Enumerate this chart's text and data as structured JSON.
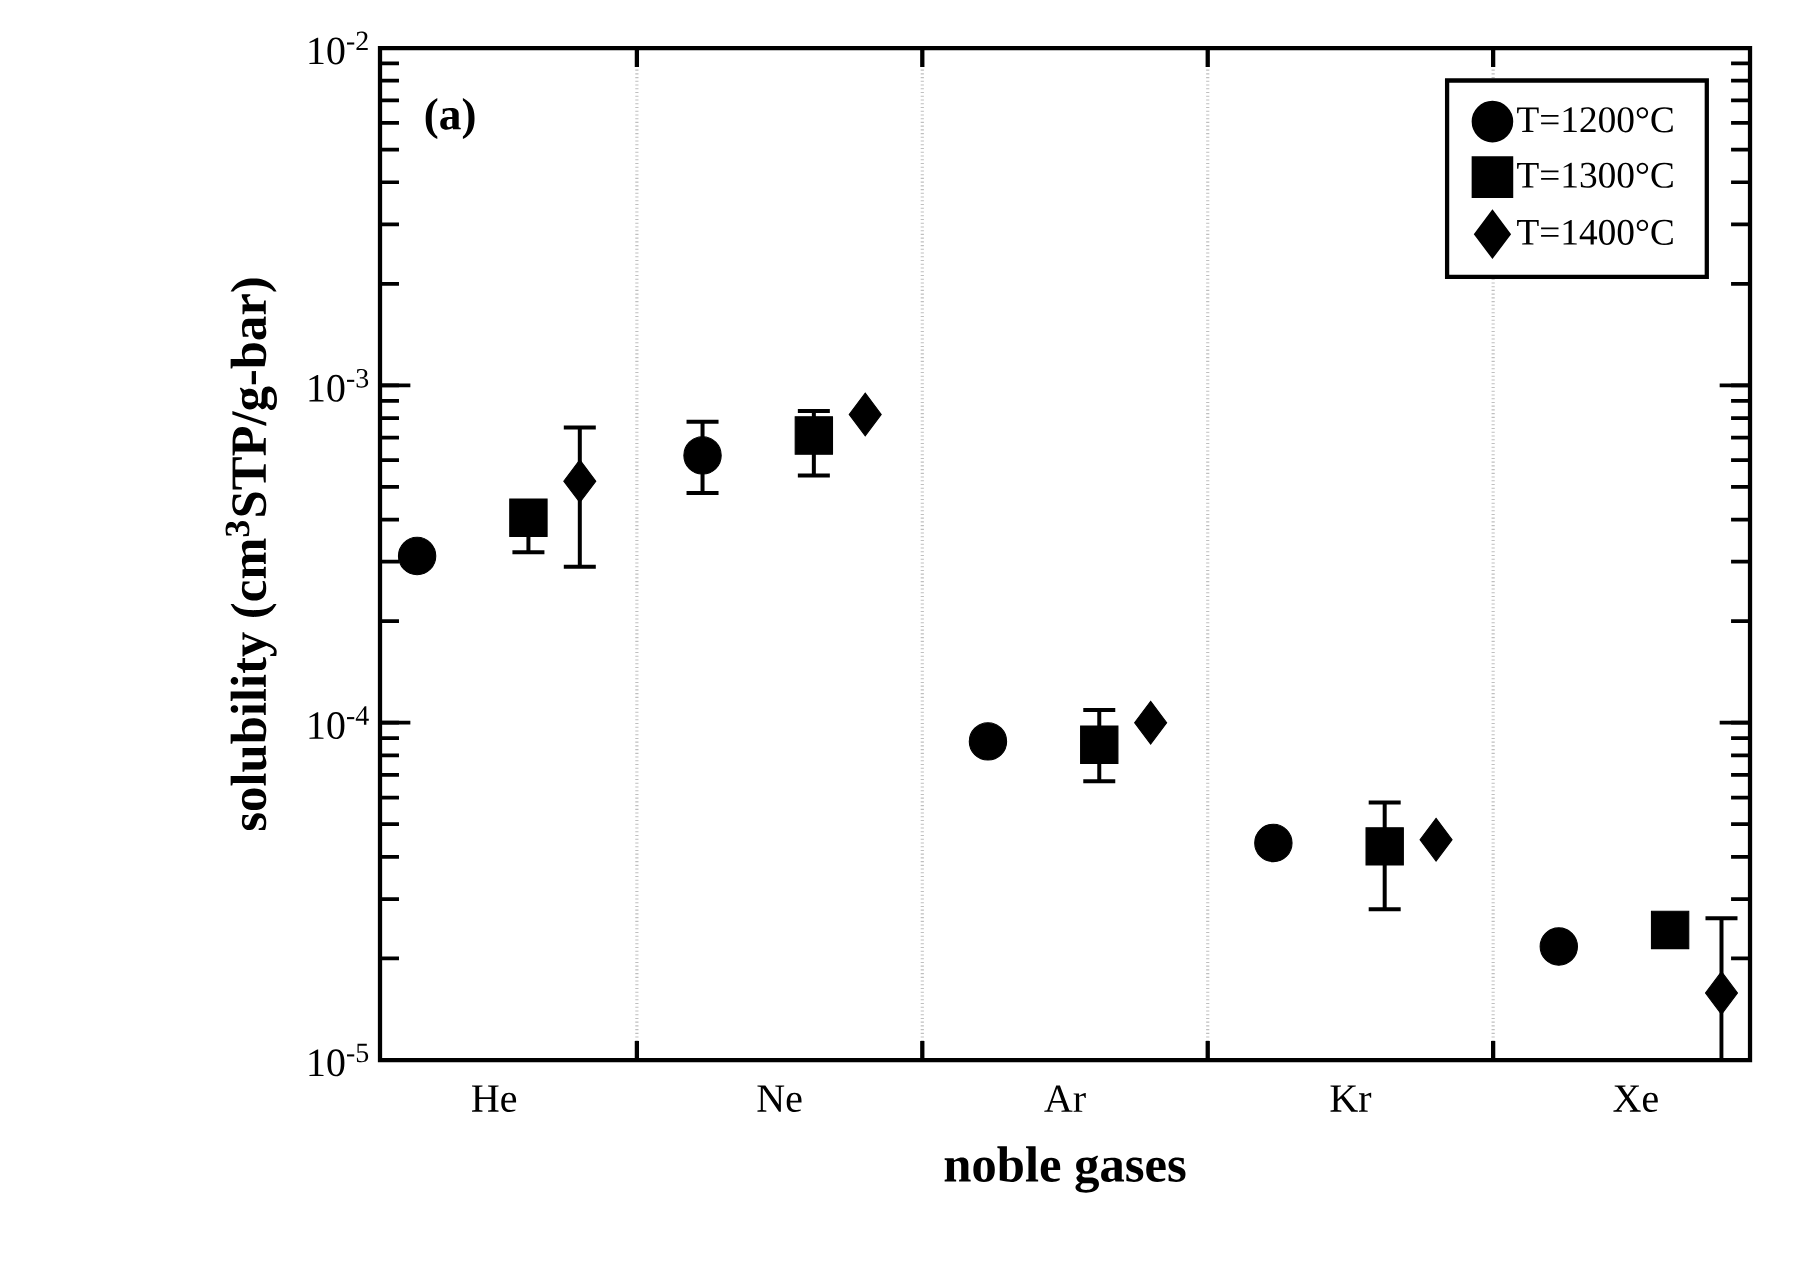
{
  "chart_data": {
    "type": "scatter",
    "xlabel": "noble gases",
    "ylabel": "solubility (cm$^{3}$STP/g-bar)",
    "annotations": [
      "(a)"
    ],
    "categories": [
      "He",
      "Ne",
      "Ar",
      "Kr",
      "Xe"
    ],
    "series": [
      {
        "name": "T=1200°C",
        "color": "#000000",
        "marker": "circle",
        "values": [
          0.000312,
          0.00062,
          8.8e-05,
          4.4e-05,
          2.17e-05
        ],
        "errors": [
          null,
          [
            0.00048,
            0.00078
          ],
          null,
          null,
          null
        ]
      },
      {
        "name": "T=1300°C",
        "color": "#000000",
        "marker": "square",
        "values": [
          0.000405,
          0.00071,
          8.6e-05,
          4.3e-05,
          2.43e-05
        ],
        "errors": [
          [
            0.00032,
            0.000405
          ],
          [
            0.00054,
            0.00084
          ],
          [
            6.7e-05,
            0.000109
          ],
          [
            2.8e-05,
            5.8e-05
          ],
          null
        ]
      },
      {
        "name": "T=1400°C",
        "color": "#000000",
        "marker": "diamond",
        "values": [
          0.00052,
          0.00082,
          0.0001,
          4.5e-05,
          1.58e-05
        ],
        "errors": [
          [
            0.00029,
            0.00075
          ],
          null,
          null,
          null,
          [
            1e-05,
            2.63e-05
          ]
        ]
      }
    ],
    "log": "y",
    "ylim": [
      1e-05,
      0.01
    ],
    "yticks": [
      {
        "value": 1e-05,
        "label": "10$^{-5}$"
      },
      {
        "value": 0.0001,
        "label": "10$^{-4}$"
      },
      {
        "value": 0.001,
        "label": "10$^{-3}$"
      },
      {
        "value": 0.01,
        "label": "10$^{-2}$"
      }
    ],
    "grid": "x",
    "legend": "top right"
  }
}
